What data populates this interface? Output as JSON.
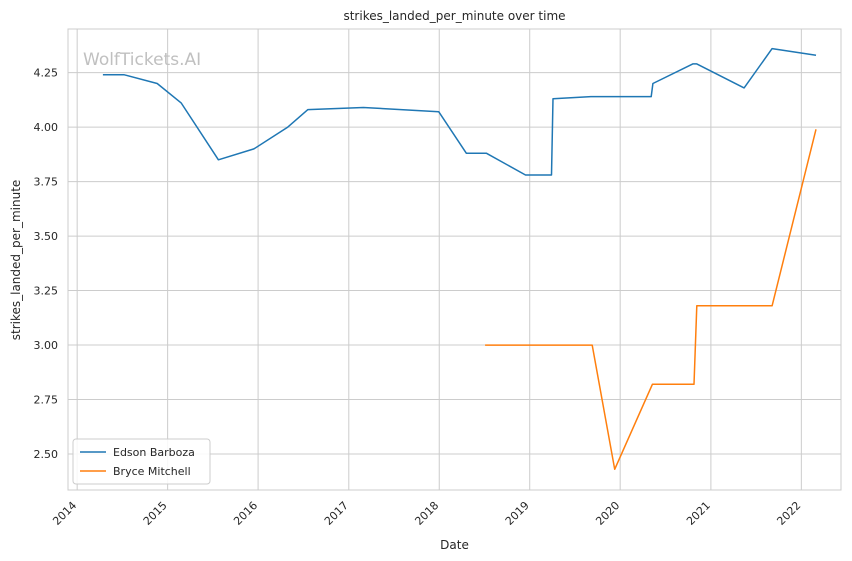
{
  "chart_data": {
    "type": "line",
    "title": "strikes_landed_per_minute over time",
    "xlabel": "Date",
    "ylabel": "strikes_landed_per_minute",
    "watermark": "WolfTickets.AI",
    "xlim": [
      "2013-11-25",
      "2022-06-10"
    ],
    "ylim": [
      2.335,
      4.45
    ],
    "x_ticks": [
      "2014",
      "2015",
      "2016",
      "2017",
      "2018",
      "2019",
      "2020",
      "2021",
      "2022"
    ],
    "y_ticks": [
      "2.50",
      "2.75",
      "3.00",
      "3.25",
      "3.50",
      "3.75",
      "4.00",
      "4.25"
    ],
    "grid": true,
    "legend_position": "lower-left",
    "series": [
      {
        "name": "Edson Barboza",
        "color": "#1f77b4",
        "points": [
          [
            "2014-04-15",
            4.24
          ],
          [
            "2014-07-10",
            4.24
          ],
          [
            "2014-11-20",
            4.2
          ],
          [
            "2015-02-25",
            4.11
          ],
          [
            "2015-07-25",
            3.85
          ],
          [
            "2015-12-15",
            3.9
          ],
          [
            "2016-04-30",
            4.0
          ],
          [
            "2016-07-20",
            4.08
          ],
          [
            "2017-03-01",
            4.09
          ],
          [
            "2017-12-30",
            4.07
          ],
          [
            "2018-04-20",
            3.88
          ],
          [
            "2018-07-10",
            3.88
          ],
          [
            "2018-12-15",
            3.78
          ],
          [
            "2019-03-30",
            3.78
          ],
          [
            "2019-04-05",
            4.13
          ],
          [
            "2019-09-05",
            4.14
          ],
          [
            "2020-05-05",
            4.14
          ],
          [
            "2020-05-12",
            4.2
          ],
          [
            "2020-10-20",
            4.29
          ],
          [
            "2020-11-05",
            4.29
          ],
          [
            "2021-05-15",
            4.18
          ],
          [
            "2021-09-05",
            4.36
          ],
          [
            "2022-03-01",
            4.33
          ]
        ]
      },
      {
        "name": "Bryce Mitchell",
        "color": "#ff7f0e",
        "points": [
          [
            "2018-07-05",
            3.0
          ],
          [
            "2019-09-10",
            3.0
          ],
          [
            "2019-12-10",
            2.43
          ],
          [
            "2020-05-10",
            2.82
          ],
          [
            "2020-10-25",
            2.82
          ],
          [
            "2020-11-05",
            3.18
          ],
          [
            "2021-09-05",
            3.18
          ],
          [
            "2022-03-01",
            3.99
          ]
        ]
      }
    ]
  }
}
